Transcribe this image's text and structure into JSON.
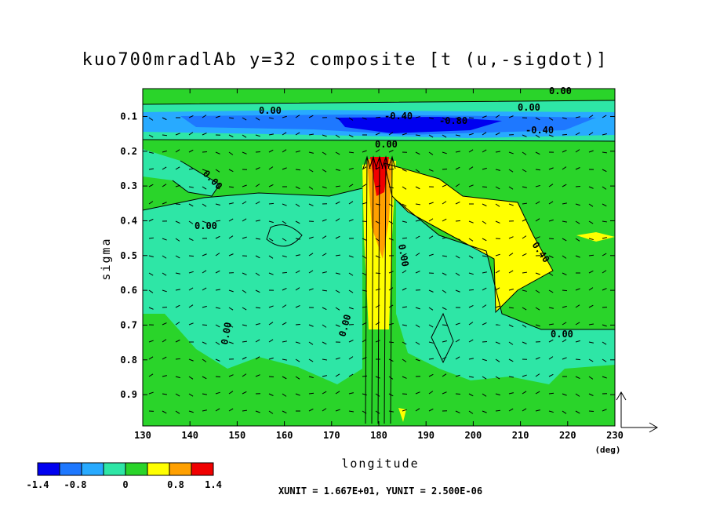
{
  "chart_data": {
    "type": "contour",
    "title": "kuo700mradlAb y=32 composite [t (u,-sigdot)]",
    "x_label": "longitude",
    "y_label": "sigma",
    "x_unit_label": "(deg)",
    "xlim": [
      130,
      230
    ],
    "xticks": [
      130,
      140,
      150,
      160,
      170,
      180,
      190,
      200,
      210,
      220,
      230
    ],
    "ylim": [
      0.02,
      0.99
    ],
    "yticks": [
      0.1,
      0.2,
      0.3,
      0.4,
      0.5,
      0.6,
      0.7,
      0.8,
      0.9
    ],
    "colorbar": {
      "lim": [
        -1.4,
        1.4
      ],
      "ticks": [
        -1.4,
        -0.8,
        0,
        0.8,
        1.4
      ],
      "colors": [
        "#0000f0",
        "#1e78ff",
        "#28aaff",
        "#2ee6a6",
        "#2ad42a",
        "#ffff00",
        "#ffa000",
        "#f00000"
      ]
    },
    "contour_labels": [
      "0.00",
      "0.00",
      "0.00",
      "-0.40",
      "-0.80",
      "-0.40",
      "0.00",
      "0.00",
      "0.00",
      "0.40",
      "0.00",
      "0.00",
      "0.00",
      "0.00"
    ],
    "footer": "XUNIT = 1.667E+01, YUNIT = 2.500E-06"
  }
}
